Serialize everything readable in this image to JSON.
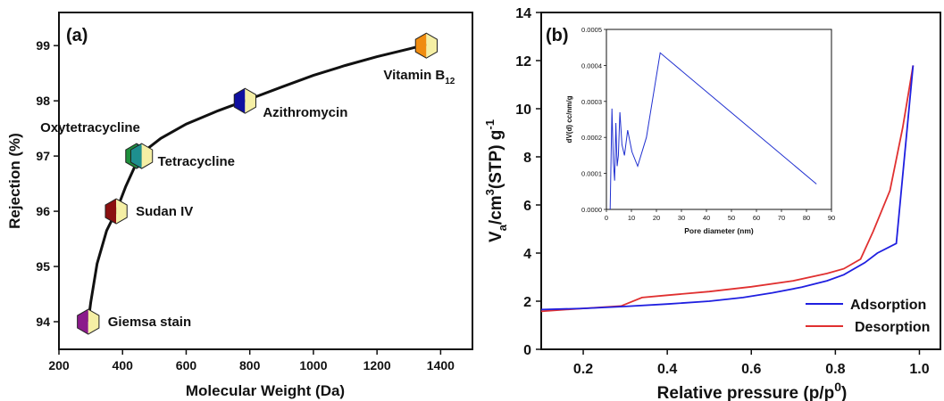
{
  "chart_data": [
    {
      "panel": "(a)",
      "type": "line",
      "xlabel": "Molecular Weight (Da)",
      "ylabel": "Rejection (%)",
      "xlim": [
        200,
        1500
      ],
      "ylim": [
        93.5,
        99.6
      ],
      "xticks": [
        200,
        400,
        600,
        800,
        1000,
        1200,
        1400
      ],
      "yticks": [
        94,
        95,
        96,
        97,
        98,
        99
      ],
      "points": [
        {
          "name": "Giemsa stain",
          "x": 292,
          "y": 94.0,
          "colors": [
            "#8B1A8B",
            "#F5EFA5"
          ]
        },
        {
          "name": "Sudan IV",
          "x": 380,
          "y": 96.0,
          "colors": [
            "#8B1010",
            "#F5EFA5"
          ]
        },
        {
          "name": "Oxytetracycline",
          "x": 444,
          "y": 97.0,
          "colors": [
            "#1E8F3C",
            "#0F6A60"
          ]
        },
        {
          "name": "Tetracycline",
          "x": 460,
          "y": 97.0,
          "colors": [
            "#1E8F8F",
            "#F5EFA5"
          ]
        },
        {
          "name": "Azithromycin",
          "x": 785,
          "y": 98.0,
          "colors": [
            "#1010A0",
            "#F5EFA5"
          ]
        },
        {
          "name": "Vitamin B",
          "x": 1355,
          "y": 99.0,
          "colors": [
            "#F08C10",
            "#F5EFA5"
          ]
        }
      ],
      "vitamin_subscript": "12",
      "curve_x": [
        292,
        300,
        320,
        350,
        380,
        410,
        444,
        460,
        520,
        600,
        700,
        785,
        900,
        1000,
        1100,
        1200,
        1300,
        1355
      ],
      "curve_y": [
        94.0,
        94.35,
        95.05,
        95.65,
        96.0,
        96.45,
        96.88,
        97.05,
        97.32,
        97.58,
        97.82,
        98.0,
        98.25,
        98.46,
        98.64,
        98.8,
        98.94,
        99.02
      ]
    },
    {
      "panel": "(b)",
      "type": "line",
      "xlabel": "Relative pressure (p/p",
      "xlabel_sup": "0",
      "xlabel_end": ")",
      "ylabel_parts": [
        "V",
        "a",
        "/cm",
        "3",
        "(STP) g",
        "-1"
      ],
      "xlim": [
        0.1,
        1.05
      ],
      "ylim": [
        0,
        14
      ],
      "xticks": [
        0.2,
        0.4,
        0.6,
        0.8,
        1.0
      ],
      "xtick_labels": [
        "0.2",
        "0.4",
        "0.6",
        "0.8",
        "1.0"
      ],
      "yticks": [
        0,
        2,
        4,
        6,
        8,
        10,
        12,
        14
      ],
      "series": [
        {
          "name": "Adsorption",
          "color": "#1F1FE0",
          "x": [
            0.1,
            0.2,
            0.3,
            0.4,
            0.5,
            0.58,
            0.65,
            0.72,
            0.78,
            0.82,
            0.87,
            0.9,
            0.945,
            0.985
          ],
          "y": [
            1.65,
            1.7,
            1.78,
            1.88,
            2.0,
            2.15,
            2.35,
            2.58,
            2.85,
            3.1,
            3.6,
            4.0,
            4.4,
            11.8
          ]
        },
        {
          "name": "Desorption",
          "color": "#E03030",
          "x": [
            0.1,
            0.2,
            0.29,
            0.34,
            0.4,
            0.5,
            0.6,
            0.7,
            0.78,
            0.82,
            0.86,
            0.89,
            0.93,
            0.96,
            0.985
          ],
          "y": [
            1.58,
            1.7,
            1.8,
            2.15,
            2.25,
            2.4,
            2.6,
            2.85,
            3.15,
            3.35,
            3.75,
            4.9,
            6.6,
            9.2,
            11.8
          ]
        }
      ],
      "inset": {
        "type": "line",
        "xlabel": "Pore diameter (nm)",
        "ylabel": "dV(d) cc/nm/g",
        "xlim": [
          0,
          90
        ],
        "ylim": [
          0,
          0.0005
        ],
        "xticks": [
          0,
          10,
          20,
          30,
          40,
          50,
          60,
          70,
          80,
          90
        ],
        "yticks": [
          0,
          0.0001,
          0.0002,
          0.0003,
          0.0004,
          0.0005
        ],
        "ytick_labels": [
          "0.0000",
          "0.0001",
          "0.0002",
          "0.0003",
          "0.0004",
          "0.0005"
        ],
        "color": "#2030D0",
        "x": [
          1.5,
          2.2,
          2.8,
          3.3,
          3.8,
          4.3,
          4.8,
          5.4,
          6.2,
          7.2,
          8.5,
          10.2,
          12.5,
          16,
          21.5,
          84
        ],
        "y": [
          0.0,
          0.00028,
          0.00013,
          8e-05,
          0.00024,
          0.00012,
          0.00015,
          0.00027,
          0.00018,
          0.00015,
          0.00022,
          0.00016,
          0.00012,
          0.0002,
          0.000435,
          7.05e-05
        ]
      }
    }
  ]
}
